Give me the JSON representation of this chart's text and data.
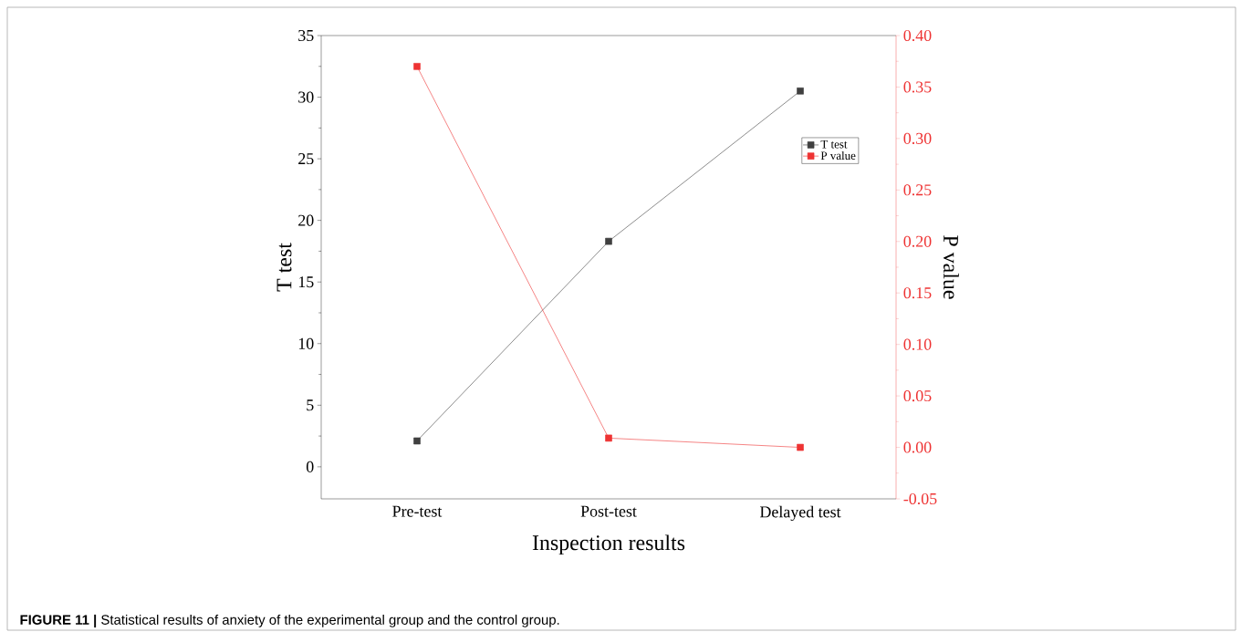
{
  "chart_data": {
    "type": "line",
    "categories": [
      "Pre-test",
      "Post-test",
      "Delayed test"
    ],
    "series": [
      {
        "name": "T test",
        "color": "#404040",
        "values": [
          2.1,
          18.3,
          30.5
        ]
      },
      {
        "name": "P value",
        "color": "#ee3333",
        "axis": "y2",
        "values": [
          0.37,
          0.009,
          0.0
        ]
      }
    ],
    "xlabel": "Inspection results",
    "ylabel": "T test",
    "y2label": "P value",
    "ylim": [
      -2.6,
      35
    ],
    "yticks": [
      0,
      5,
      10,
      15,
      20,
      25,
      30,
      35
    ],
    "y2lim": [
      -0.05,
      0.4
    ],
    "y2ticks": [
      {
        "value": -0.05,
        "label": "-0.05"
      },
      {
        "value": 0,
        "label": "0.00"
      },
      {
        "value": 0.05,
        "label": "0.05"
      },
      {
        "value": 0.1,
        "label": "0.10"
      },
      {
        "value": 0.15,
        "label": "0.15"
      },
      {
        "value": 0.2,
        "label": "0.20"
      },
      {
        "value": 0.25,
        "label": "0.25"
      },
      {
        "value": 0.3,
        "label": "0.30"
      },
      {
        "value": 0.35,
        "label": "0.35"
      },
      {
        "value": 0.4,
        "label": "0.40"
      }
    ],
    "legend": "top right",
    "marker": "square",
    "line_style": "solid",
    "annotations": [
      "**FIGURE 11 |** Statistical results of anxiety of the experimental group and the control group."
    ]
  }
}
